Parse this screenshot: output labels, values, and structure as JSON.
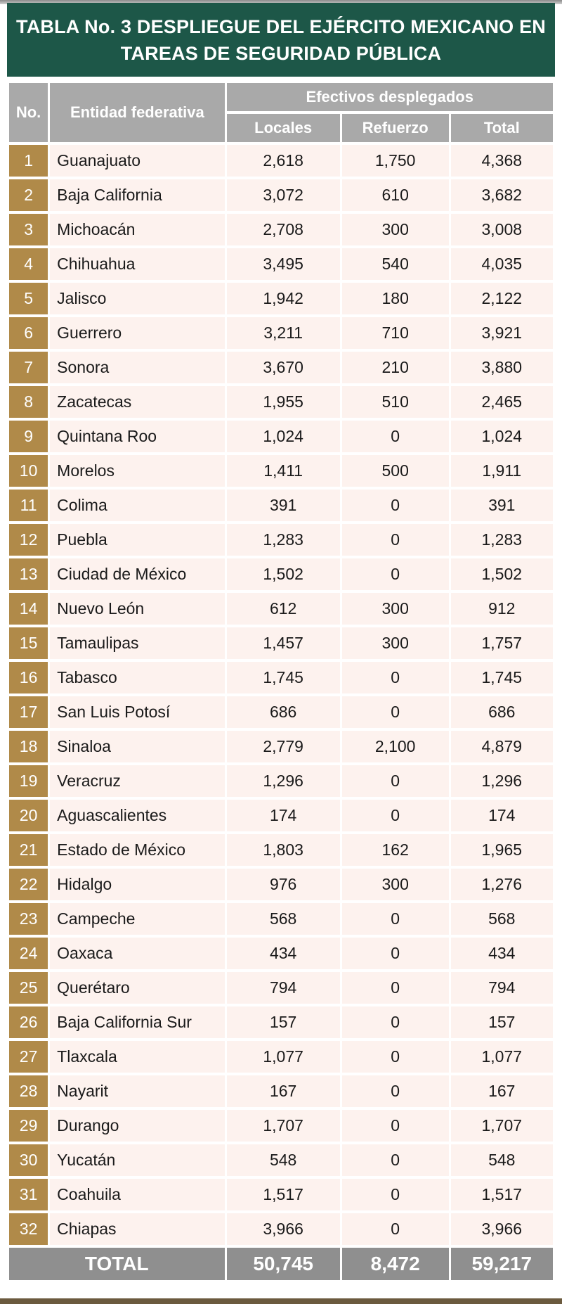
{
  "title": "TABLA No. 3 DESPLIEGUE DEL EJÉRCITO MEXICANO EN TAREAS DE SEGURIDAD PÚBLICA",
  "headers": {
    "no": "No.",
    "entity": "Entidad federativa",
    "group": "Efectivos desplegados",
    "locales": "Locales",
    "refuerzo": "Refuerzo",
    "total": "Total"
  },
  "rows": [
    {
      "no": "1",
      "entity": "Guanajuato",
      "locales": "2,618",
      "refuerzo": "1,750",
      "total": "4,368"
    },
    {
      "no": "2",
      "entity": "Baja California",
      "locales": "3,072",
      "refuerzo": "610",
      "total": "3,682"
    },
    {
      "no": "3",
      "entity": "Michoacán",
      "locales": "2,708",
      "refuerzo": "300",
      "total": "3,008"
    },
    {
      "no": "4",
      "entity": "Chihuahua",
      "locales": "3,495",
      "refuerzo": "540",
      "total": "4,035"
    },
    {
      "no": "5",
      "entity": "Jalisco",
      "locales": "1,942",
      "refuerzo": "180",
      "total": "2,122"
    },
    {
      "no": "6",
      "entity": "Guerrero",
      "locales": "3,211",
      "refuerzo": "710",
      "total": "3,921"
    },
    {
      "no": "7",
      "entity": "Sonora",
      "locales": "3,670",
      "refuerzo": "210",
      "total": "3,880"
    },
    {
      "no": "8",
      "entity": "Zacatecas",
      "locales": "1,955",
      "refuerzo": "510",
      "total": "2,465"
    },
    {
      "no": "9",
      "entity": "Quintana Roo",
      "locales": "1,024",
      "refuerzo": "0",
      "total": "1,024"
    },
    {
      "no": "10",
      "entity": "Morelos",
      "locales": "1,411",
      "refuerzo": "500",
      "total": "1,911"
    },
    {
      "no": "11",
      "entity": "Colima",
      "locales": "391",
      "refuerzo": "0",
      "total": "391"
    },
    {
      "no": "12",
      "entity": "Puebla",
      "locales": "1,283",
      "refuerzo": "0",
      "total": "1,283"
    },
    {
      "no": "13",
      "entity": "Ciudad de México",
      "locales": "1,502",
      "refuerzo": "0",
      "total": "1,502"
    },
    {
      "no": "14",
      "entity": "Nuevo León",
      "locales": "612",
      "refuerzo": "300",
      "total": "912"
    },
    {
      "no": "15",
      "entity": "Tamaulipas",
      "locales": "1,457",
      "refuerzo": "300",
      "total": "1,757"
    },
    {
      "no": "16",
      "entity": "Tabasco",
      "locales": "1,745",
      "refuerzo": "0",
      "total": "1,745"
    },
    {
      "no": "17",
      "entity": "San Luis Potosí",
      "locales": "686",
      "refuerzo": "0",
      "total": "686"
    },
    {
      "no": "18",
      "entity": "Sinaloa",
      "locales": "2,779",
      "refuerzo": "2,100",
      "total": "4,879"
    },
    {
      "no": "19",
      "entity": "Veracruz",
      "locales": "1,296",
      "refuerzo": "0",
      "total": "1,296"
    },
    {
      "no": "20",
      "entity": "Aguascalientes",
      "locales": "174",
      "refuerzo": "0",
      "total": "174"
    },
    {
      "no": "21",
      "entity": "Estado de México",
      "locales": "1,803",
      "refuerzo": "162",
      "total": "1,965"
    },
    {
      "no": "22",
      "entity": "Hidalgo",
      "locales": "976",
      "refuerzo": "300",
      "total": "1,276"
    },
    {
      "no": "23",
      "entity": "Campeche",
      "locales": "568",
      "refuerzo": "0",
      "total": "568"
    },
    {
      "no": "24",
      "entity": "Oaxaca",
      "locales": "434",
      "refuerzo": "0",
      "total": "434"
    },
    {
      "no": "25",
      "entity": "Querétaro",
      "locales": "794",
      "refuerzo": "0",
      "total": "794"
    },
    {
      "no": "26",
      "entity": "Baja California Sur",
      "locales": "157",
      "refuerzo": "0",
      "total": "157"
    },
    {
      "no": "27",
      "entity": "Tlaxcala",
      "locales": "1,077",
      "refuerzo": "0",
      "total": "1,077"
    },
    {
      "no": "28",
      "entity": "Nayarit",
      "locales": "167",
      "refuerzo": "0",
      "total": "167"
    },
    {
      "no": "29",
      "entity": "Durango",
      "locales": "1,707",
      "refuerzo": "0",
      "total": "1,707"
    },
    {
      "no": "30",
      "entity": "Yucatán",
      "locales": "548",
      "refuerzo": "0",
      "total": "548"
    },
    {
      "no": "31",
      "entity": "Coahuila",
      "locales": "1,517",
      "refuerzo": "0",
      "total": "1,517"
    },
    {
      "no": "32",
      "entity": "Chiapas",
      "locales": "3,966",
      "refuerzo": "0",
      "total": "3,966"
    }
  ],
  "totals": {
    "label": "TOTAL",
    "locales": "50,745",
    "refuerzo": "8,472",
    "total": "59,217"
  },
  "colors": {
    "title_bg": "#1d5748",
    "header_bg": "#a9a9a9",
    "number_cell_bg": "#b08a49",
    "row_bg": "#fdf2ee",
    "total_bg": "#8f8f8f"
  }
}
